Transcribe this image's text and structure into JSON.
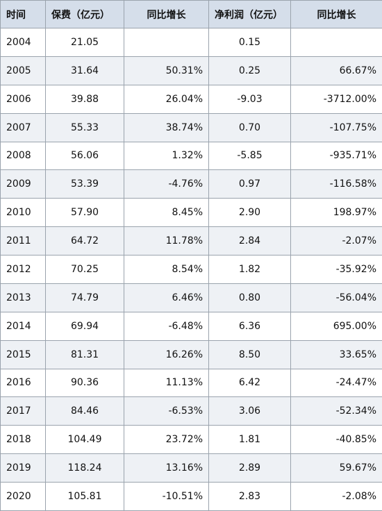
{
  "table": {
    "header": [
      "时间",
      "保费（亿元）",
      "同比增长",
      "净利润（亿元）",
      "同比增长"
    ],
    "rows": [
      [
        "2004",
        "21.05",
        null,
        "0.15",
        null
      ],
      [
        "2005",
        "31.64",
        "50.31%",
        "0.25",
        "66.67%"
      ],
      [
        "2006",
        "39.88",
        "26.04%",
        "-9.03",
        "-3712.00%"
      ],
      [
        "2007",
        "55.33",
        "38.74%",
        "0.70",
        "-107.75%"
      ],
      [
        "2008",
        "56.06",
        "1.32%",
        "-5.85",
        "-935.71%"
      ],
      [
        "2009",
        "53.39",
        "-4.76%",
        "0.97",
        "-116.58%"
      ],
      [
        "2010",
        "57.90",
        "8.45%",
        "2.90",
        "198.97%"
      ],
      [
        "2011",
        "64.72",
        "11.78%",
        "2.84",
        "-2.07%"
      ],
      [
        "2012",
        "70.25",
        "8.54%",
        "1.82",
        "-35.92%"
      ],
      [
        "2013",
        "74.79",
        "6.46%",
        "0.80",
        "-56.04%"
      ],
      [
        "2014",
        "69.94",
        "-6.48%",
        "6.36",
        "695.00%"
      ],
      [
        "2015",
        "81.31",
        "16.26%",
        "8.50",
        "33.65%"
      ],
      [
        "2016",
        "90.36",
        "11.13%",
        "6.42",
        "-24.47%"
      ],
      [
        "2017",
        "84.46",
        "-6.53%",
        "3.06",
        "-52.34%"
      ],
      [
        "2018",
        "104.49",
        "23.72%",
        "1.81",
        "-40.85%"
      ],
      [
        "2019",
        "118.24",
        "13.16%",
        "2.89",
        "59.67%"
      ],
      [
        "2020",
        "105.81",
        "-10.51%",
        "2.83",
        "-2.08%"
      ]
    ]
  }
}
